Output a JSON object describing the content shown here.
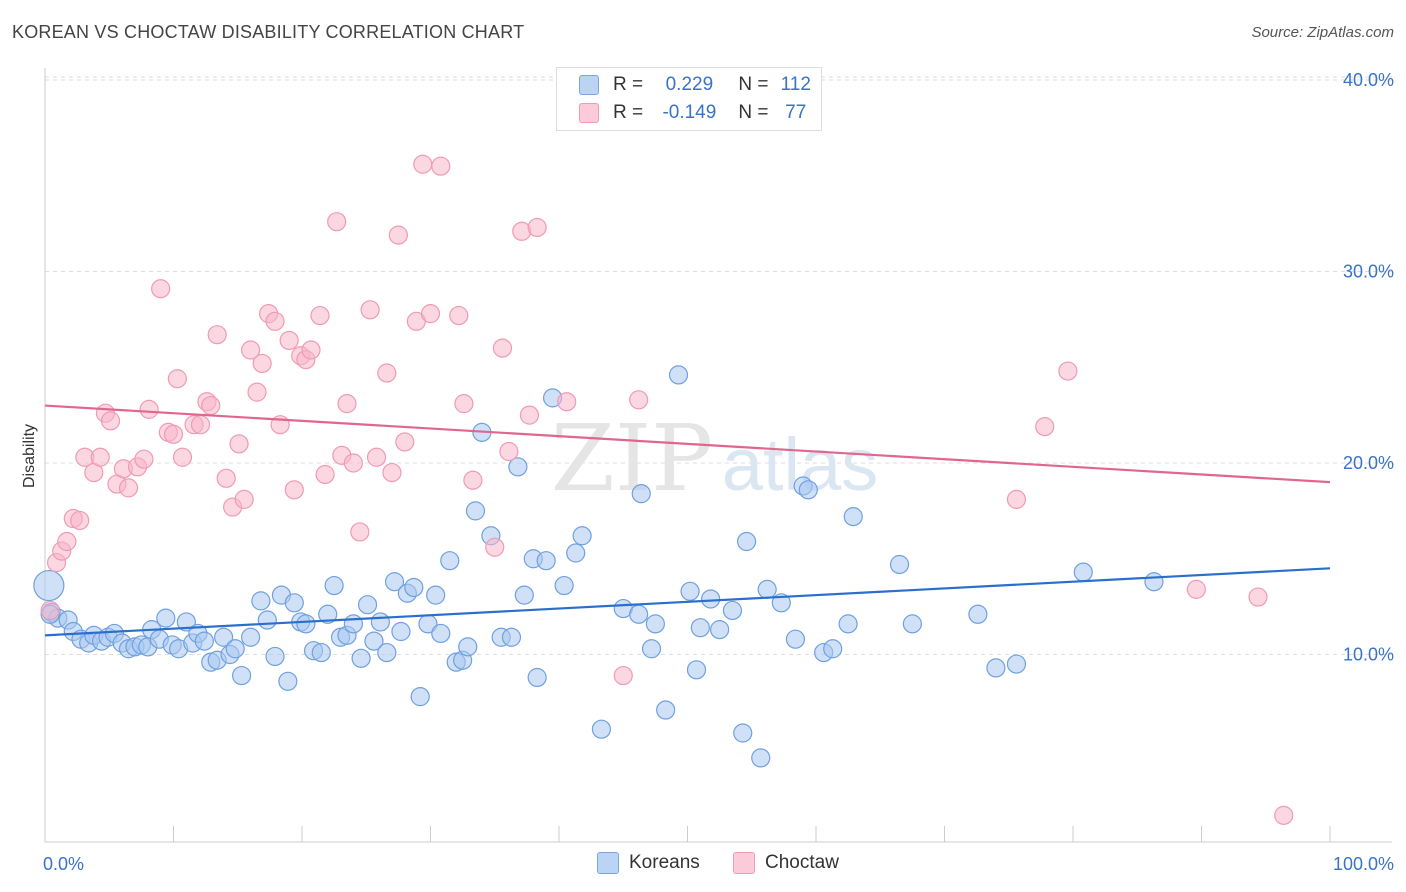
{
  "header": {
    "title": "KOREAN VS CHOCTAW DISABILITY CORRELATION CHART",
    "source": "Source: ZipAtlas.com"
  },
  "watermark": {
    "zip": "ZIP",
    "atlas": "atlas"
  },
  "legend": {
    "rows": [
      {
        "r_label": "R = ",
        "r_value": "0.229",
        "n_label": "N = ",
        "n_value": "112",
        "color": "#aac8f0"
      },
      {
        "r_label": "R = ",
        "r_value": "-0.149",
        "n_label": "N = ",
        "n_value": "77",
        "color": "#f7b6ca"
      }
    ]
  },
  "bottom_legend": {
    "items": [
      {
        "label": "Koreans",
        "color": "#aac8f0"
      },
      {
        "label": "Choctaw",
        "color": "#f7b6ca"
      }
    ]
  },
  "chart_data": {
    "type": "scatter",
    "title": "KOREAN VS CHOCTAW DISABILITY CORRELATION CHART",
    "xlabel": "",
    "ylabel": "Disability",
    "xlim": [
      0,
      100
    ],
    "ylim": [
      0,
      40
    ],
    "x_tick_labels": [
      "0.0%",
      "100.0%"
    ],
    "y_ticks": [
      10,
      20,
      30,
      40
    ],
    "y_tick_labels": [
      "10.0%",
      "20.0%",
      "30.0%",
      "40.0%"
    ],
    "grid": "horizontal dashed",
    "legend_position": "top-center",
    "series": [
      {
        "name": "Koreans",
        "color": "#6fa0e0",
        "fill": "#aac8f0",
        "trend": {
          "x": [
            0,
            100
          ],
          "y": [
            11.0,
            14.5
          ],
          "color": "#2b6fcc"
        },
        "points": [
          [
            0.3,
            13.6
          ],
          [
            0.5,
            12.2
          ],
          [
            1.0,
            11.9
          ],
          [
            1.8,
            11.8
          ],
          [
            2.2,
            11.2
          ],
          [
            2.8,
            10.8
          ],
          [
            3.4,
            10.6
          ],
          [
            3.8,
            11.0
          ],
          [
            4.4,
            10.7
          ],
          [
            4.9,
            10.9
          ],
          [
            5.4,
            11.1
          ],
          [
            6.0,
            10.6
          ],
          [
            6.5,
            10.3
          ],
          [
            7.0,
            10.4
          ],
          [
            7.5,
            10.5
          ],
          [
            8.0,
            10.4
          ],
          [
            8.3,
            11.3
          ],
          [
            8.9,
            10.8
          ],
          [
            9.4,
            11.9
          ],
          [
            9.9,
            10.5
          ],
          [
            10.4,
            10.3
          ],
          [
            11.0,
            11.7
          ],
          [
            11.5,
            10.6
          ],
          [
            11.9,
            11.1
          ],
          [
            12.4,
            10.7
          ],
          [
            12.9,
            9.6
          ],
          [
            13.4,
            9.7
          ],
          [
            13.9,
            10.9
          ],
          [
            14.4,
            10.0
          ],
          [
            14.8,
            10.3
          ],
          [
            15.3,
            8.9
          ],
          [
            16.0,
            10.9
          ],
          [
            16.8,
            12.8
          ],
          [
            17.3,
            11.8
          ],
          [
            17.9,
            9.9
          ],
          [
            18.4,
            13.1
          ],
          [
            18.9,
            8.6
          ],
          [
            19.4,
            12.7
          ],
          [
            19.9,
            11.7
          ],
          [
            20.3,
            11.6
          ],
          [
            20.9,
            10.2
          ],
          [
            21.5,
            10.1
          ],
          [
            22.0,
            12.1
          ],
          [
            22.5,
            13.6
          ],
          [
            23.0,
            10.9
          ],
          [
            23.5,
            11.0
          ],
          [
            24.0,
            11.6
          ],
          [
            24.6,
            9.8
          ],
          [
            25.1,
            12.6
          ],
          [
            25.6,
            10.7
          ],
          [
            26.1,
            11.7
          ],
          [
            26.6,
            10.1
          ],
          [
            27.2,
            13.8
          ],
          [
            27.7,
            11.2
          ],
          [
            28.2,
            13.2
          ],
          [
            28.7,
            13.5
          ],
          [
            29.2,
            7.8
          ],
          [
            29.8,
            11.6
          ],
          [
            30.4,
            13.1
          ],
          [
            30.8,
            11.1
          ],
          [
            31.5,
            14.9
          ],
          [
            32.0,
            9.6
          ],
          [
            32.5,
            9.7
          ],
          [
            32.9,
            10.4
          ],
          [
            33.5,
            17.5
          ],
          [
            34.0,
            21.6
          ],
          [
            34.7,
            16.2
          ],
          [
            35.5,
            10.9
          ],
          [
            36.3,
            10.9
          ],
          [
            36.8,
            19.8
          ],
          [
            37.3,
            13.1
          ],
          [
            38.3,
            8.8
          ],
          [
            38.0,
            15.0
          ],
          [
            39.0,
            14.9
          ],
          [
            39.5,
            23.4
          ],
          [
            40.4,
            13.6
          ],
          [
            41.3,
            15.3
          ],
          [
            41.8,
            16.2
          ],
          [
            43.3,
            6.1
          ],
          [
            45.0,
            12.4
          ],
          [
            46.2,
            12.1
          ],
          [
            46.4,
            18.4
          ],
          [
            47.2,
            10.3
          ],
          [
            47.5,
            11.6
          ],
          [
            48.3,
            7.1
          ],
          [
            49.3,
            24.6
          ],
          [
            50.2,
            13.3
          ],
          [
            50.7,
            9.2
          ],
          [
            51.0,
            11.4
          ],
          [
            51.8,
            12.9
          ],
          [
            52.5,
            11.3
          ],
          [
            53.5,
            12.3
          ],
          [
            54.3,
            5.9
          ],
          [
            54.6,
            15.9
          ],
          [
            55.7,
            4.6
          ],
          [
            56.2,
            13.4
          ],
          [
            57.3,
            12.7
          ],
          [
            58.4,
            10.8
          ],
          [
            59.0,
            18.8
          ],
          [
            59.4,
            18.6
          ],
          [
            60.6,
            10.1
          ],
          [
            61.3,
            10.3
          ],
          [
            62.5,
            11.6
          ],
          [
            62.9,
            17.2
          ],
          [
            66.5,
            14.7
          ],
          [
            67.5,
            11.6
          ],
          [
            72.6,
            12.1
          ],
          [
            74.0,
            9.3
          ],
          [
            75.6,
            9.5
          ],
          [
            80.8,
            14.3
          ],
          [
            86.3,
            13.8
          ],
          [
            0.4,
            12.1
          ]
        ]
      },
      {
        "name": "Choctaw",
        "color": "#f09ab4",
        "fill": "#f7b6ca",
        "trend": {
          "x": [
            0,
            100
          ],
          "y": [
            23.0,
            19.0
          ],
          "color": "#e0668e"
        },
        "points": [
          [
            0.4,
            12.3
          ],
          [
            0.9,
            14.8
          ],
          [
            1.3,
            15.4
          ],
          [
            1.7,
            15.9
          ],
          [
            2.2,
            17.1
          ],
          [
            2.7,
            17.0
          ],
          [
            3.1,
            20.3
          ],
          [
            3.8,
            19.5
          ],
          [
            4.3,
            20.3
          ],
          [
            4.7,
            22.6
          ],
          [
            5.1,
            22.2
          ],
          [
            5.6,
            18.9
          ],
          [
            6.1,
            19.7
          ],
          [
            6.5,
            18.7
          ],
          [
            7.2,
            19.8
          ],
          [
            7.7,
            20.2
          ],
          [
            8.1,
            22.8
          ],
          [
            9.0,
            29.1
          ],
          [
            10.3,
            24.4
          ],
          [
            10.7,
            20.3
          ],
          [
            9.6,
            21.6
          ],
          [
            10.0,
            21.5
          ],
          [
            11.6,
            22.0
          ],
          [
            12.1,
            22.0
          ],
          [
            12.6,
            23.2
          ],
          [
            12.9,
            23.0
          ],
          [
            13.4,
            26.7
          ],
          [
            14.1,
            19.2
          ],
          [
            14.6,
            17.7
          ],
          [
            15.1,
            21.0
          ],
          [
            15.5,
            18.1
          ],
          [
            16.0,
            25.9
          ],
          [
            16.5,
            23.7
          ],
          [
            16.9,
            25.2
          ],
          [
            17.4,
            27.8
          ],
          [
            17.9,
            27.4
          ],
          [
            18.3,
            22.0
          ],
          [
            19.0,
            26.4
          ],
          [
            19.4,
            18.6
          ],
          [
            19.9,
            25.6
          ],
          [
            20.3,
            25.4
          ],
          [
            20.7,
            25.9
          ],
          [
            21.4,
            27.7
          ],
          [
            21.8,
            19.4
          ],
          [
            22.7,
            32.6
          ],
          [
            23.1,
            20.4
          ],
          [
            23.5,
            23.1
          ],
          [
            24.0,
            20.0
          ],
          [
            24.5,
            16.4
          ],
          [
            25.3,
            28.0
          ],
          [
            25.8,
            20.3
          ],
          [
            26.6,
            24.7
          ],
          [
            27.0,
            19.5
          ],
          [
            27.5,
            31.9
          ],
          [
            28.0,
            21.1
          ],
          [
            28.9,
            27.4
          ],
          [
            29.4,
            35.6
          ],
          [
            30.0,
            27.8
          ],
          [
            30.8,
            35.5
          ],
          [
            32.2,
            27.7
          ],
          [
            32.6,
            23.1
          ],
          [
            33.3,
            19.1
          ],
          [
            35.0,
            15.6
          ],
          [
            35.6,
            26.0
          ],
          [
            36.1,
            20.6
          ],
          [
            37.1,
            32.1
          ],
          [
            37.7,
            22.5
          ],
          [
            38.3,
            32.3
          ],
          [
            40.6,
            23.2
          ],
          [
            45.0,
            8.9
          ],
          [
            46.2,
            23.3
          ],
          [
            75.6,
            18.1
          ],
          [
            77.8,
            21.9
          ],
          [
            79.6,
            24.8
          ],
          [
            89.6,
            13.4
          ],
          [
            94.4,
            13.0
          ],
          [
            96.4,
            1.6
          ]
        ]
      }
    ]
  }
}
